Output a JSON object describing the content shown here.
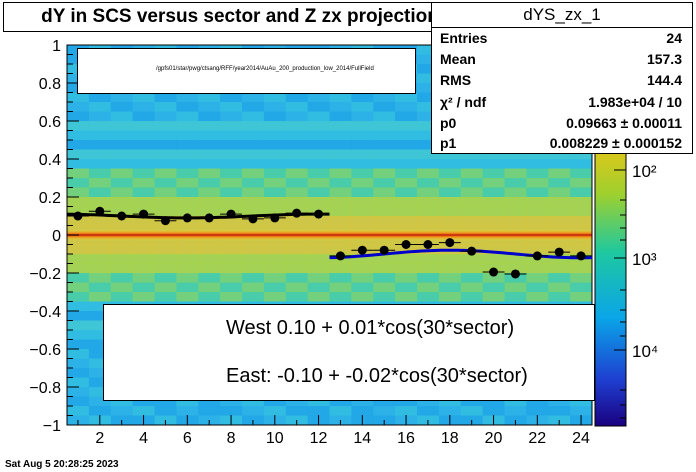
{
  "title": "dY in SCS versus sector and Z zx projection",
  "stats": {
    "name": "dYS_zx_1",
    "rows": [
      {
        "label": "Entries",
        "value": "24"
      },
      {
        "label": "Mean",
        "value": "157.3"
      },
      {
        "label": "RMS",
        "value": "144.4"
      },
      {
        "label": "χ² / ndf",
        "value": "1.983e+04 / 10"
      },
      {
        "label": "p0",
        "value": "0.09663 ± 0.00011"
      },
      {
        "label": "p1",
        "value": "0.008229 ± 0.000152"
      }
    ]
  },
  "legend_top": {
    "text": "/gpfs01/star/pwg/ctsang/RFF/year2014/AuAu_200_production_low_2014/FullField"
  },
  "legend_bottom": [
    {
      "label": "West  0.10 +  0.01*cos(30*sector)",
      "color": "#000000"
    },
    {
      "label": "East: -0.10 + -0.02*cos(30*sector)",
      "color": "#0000cc"
    }
  ],
  "footer": "Sat Aug  5 20:28:25 2023",
  "colorbar": {
    "ticks": [
      "10²",
      "10³",
      "10⁴"
    ]
  },
  "chart_data": {
    "type": "scatter",
    "xlim": [
      0.5,
      24.5
    ],
    "ylim": [
      -1,
      1
    ],
    "x_ticks": [
      "2",
      "4",
      "6",
      "8",
      "10",
      "12",
      "14",
      "16",
      "18",
      "20",
      "22",
      "24"
    ],
    "y_ticks": [
      "−1",
      "−0.8",
      "−0.6",
      "−0.4",
      "−0.2",
      "0",
      "0.2",
      "0.4",
      "0.6",
      "0.8",
      "1"
    ],
    "series": [
      {
        "name": "West",
        "color": "#000000",
        "x": [
          1,
          2,
          3,
          4,
          5,
          6,
          7,
          8,
          9,
          10,
          11,
          12
        ],
        "y": [
          0.1,
          0.125,
          0.1,
          0.11,
          0.075,
          0.09,
          0.09,
          0.11,
          0.085,
          0.09,
          0.115,
          0.11
        ],
        "fit": {
          "p0": 0.1,
          "p1": 0.01
        }
      },
      {
        "name": "East",
        "color": "#0000cc",
        "x": [
          13,
          14,
          15,
          16,
          17,
          18,
          19,
          20,
          21,
          22,
          23,
          24
        ],
        "y": [
          -0.11,
          -0.08,
          -0.08,
          -0.05,
          -0.05,
          -0.04,
          -0.085,
          -0.195,
          -0.205,
          -0.11,
          -0.09,
          -0.11
        ],
        "fit": {
          "p0": -0.1,
          "p1": -0.02
        }
      }
    ]
  }
}
